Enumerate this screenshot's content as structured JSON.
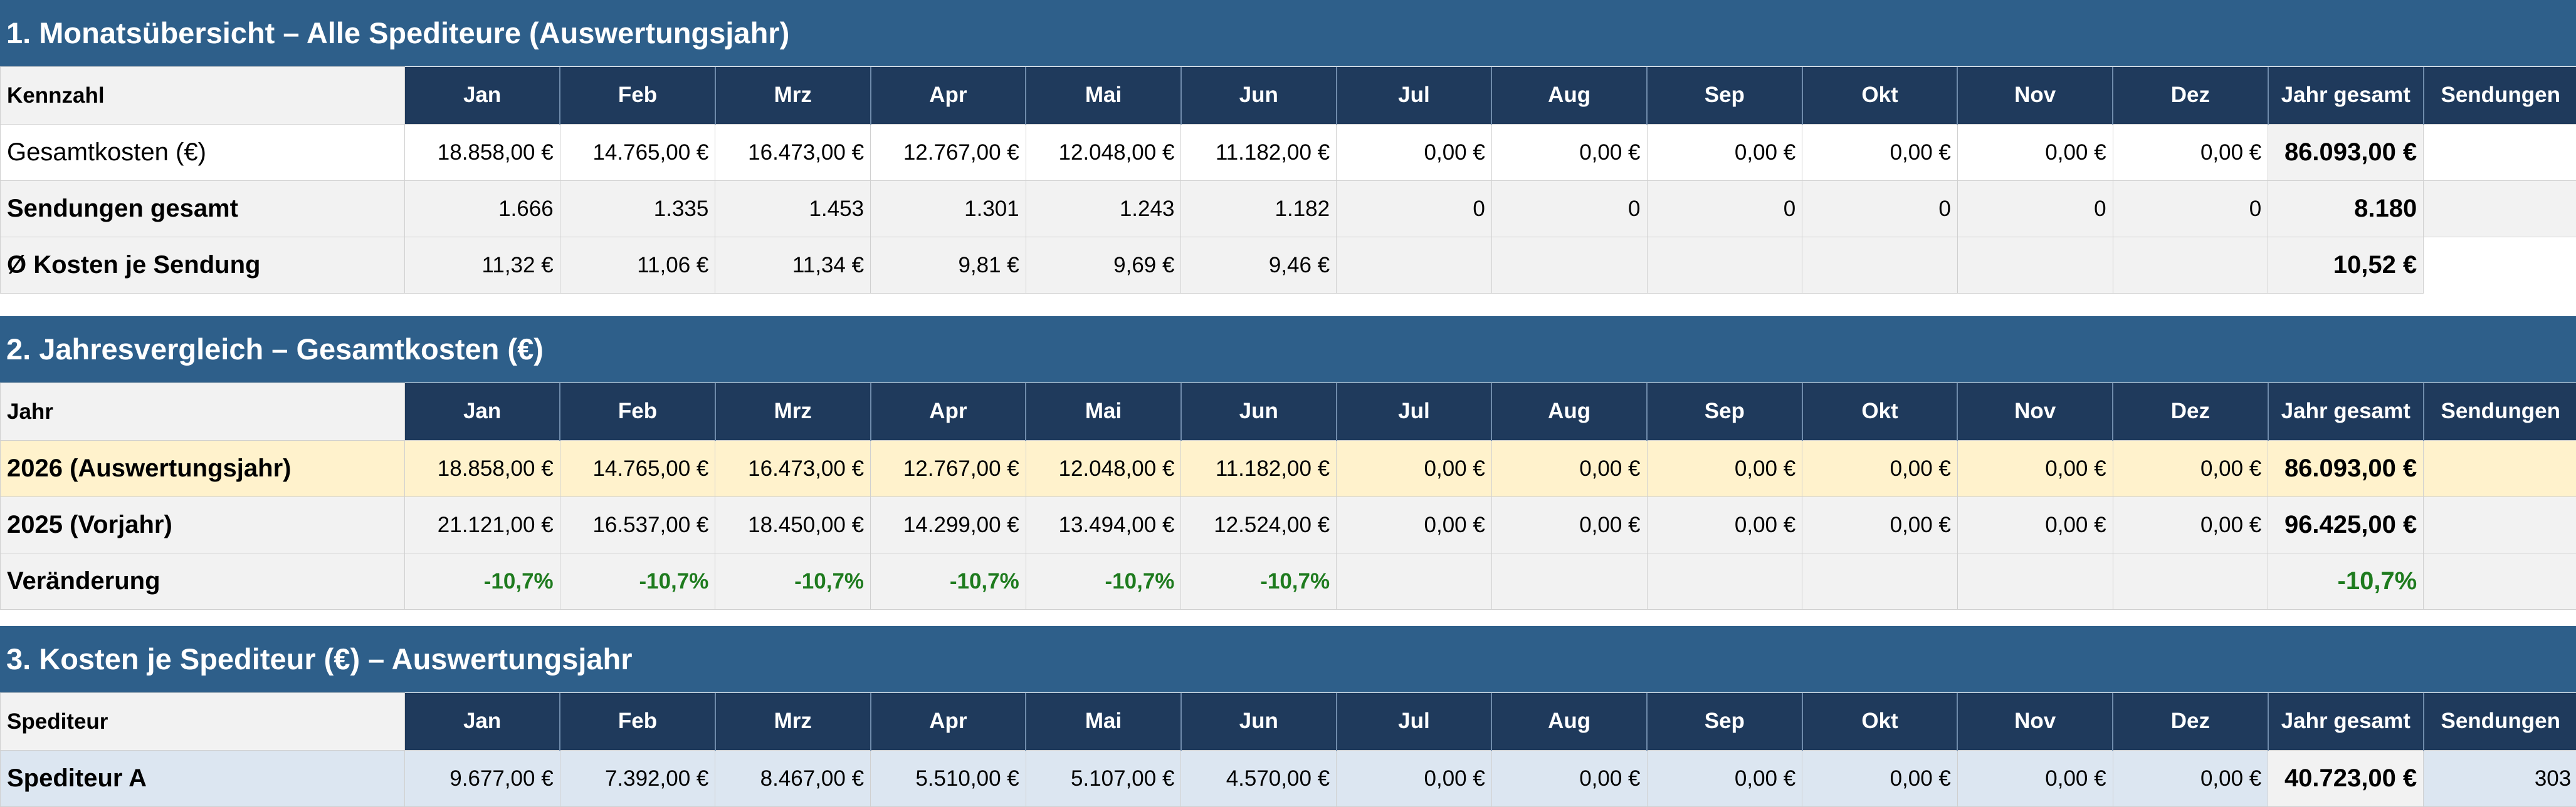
{
  "months": [
    "Jan",
    "Feb",
    "Mrz",
    "Apr",
    "Mai",
    "Jun",
    "Jul",
    "Aug",
    "Sep",
    "Okt",
    "Nov",
    "Dez"
  ],
  "col_total": "Jahr gesamt",
  "col_shipments": "Sendungen",
  "section1": {
    "title": "1. Monatsübersicht – Alle Spediteure (Auswertungsjahr)",
    "first_col": "Kennzahl",
    "rows": [
      {
        "label": "Gesamtkosten (€)",
        "values": [
          "18.858,00 €",
          "14.765,00 €",
          "16.473,00 €",
          "12.767,00 €",
          "12.048,00 €",
          "11.182,00 €",
          "0,00 €",
          "0,00 €",
          "0,00 €",
          "0,00 €",
          "0,00 €",
          "0,00 €"
        ],
        "total": "86.093,00 €",
        "shipments": ""
      },
      {
        "label": "Sendungen gesamt",
        "values": [
          "1.666",
          "1.335",
          "1.453",
          "1.301",
          "1.243",
          "1.182",
          "0",
          "0",
          "0",
          "0",
          "0",
          "0"
        ],
        "total": "8.180",
        "shipments": ""
      },
      {
        "label": "Ø Kosten je Sendung",
        "values": [
          "11,32 €",
          "11,06 €",
          "11,34 €",
          "9,81 €",
          "9,69 €",
          "9,46 €",
          "",
          "",
          "",
          "",
          "",
          ""
        ],
        "total": "10,52 €"
      }
    ]
  },
  "section2": {
    "title": "2. Jahresvergleich – Gesamtkosten (€)",
    "first_col": "Jahr",
    "rows": [
      {
        "label": "2026 (Auswertungsjahr)",
        "values": [
          "18.858,00 €",
          "14.765,00 €",
          "16.473,00 €",
          "12.767,00 €",
          "12.048,00 €",
          "11.182,00 €",
          "0,00 €",
          "0,00 €",
          "0,00 €",
          "0,00 €",
          "0,00 €",
          "0,00 €"
        ],
        "total": "86.093,00 €",
        "shipments": ""
      },
      {
        "label": "2025 (Vorjahr)",
        "values": [
          "21.121,00 €",
          "16.537,00 €",
          "18.450,00 €",
          "14.299,00 €",
          "13.494,00 €",
          "12.524,00 €",
          "0,00 €",
          "0,00 €",
          "0,00 €",
          "0,00 €",
          "0,00 €",
          "0,00 €"
        ],
        "total": "96.425,00 €",
        "shipments": ""
      },
      {
        "label": "Veränderung",
        "values": [
          "-10,7%",
          "-10,7%",
          "-10,7%",
          "-10,7%",
          "-10,7%",
          "-10,7%",
          "",
          "",
          "",
          "",
          "",
          ""
        ],
        "total": "-10,7%",
        "shipments": ""
      }
    ]
  },
  "section3": {
    "title": "3. Kosten je Spediteur (€) – Auswertungsjahr",
    "first_col": "Spediteur",
    "rows": [
      {
        "label": "Spediteur A",
        "values": [
          "9.677,00 €",
          "7.392,00 €",
          "8.467,00 €",
          "5.510,00 €",
          "5.107,00 €",
          "4.570,00 €",
          "0,00 €",
          "0,00 €",
          "0,00 €",
          "0,00 €",
          "0,00 €",
          "0,00 €"
        ],
        "total": "40.723,00 €",
        "shipments": "303"
      }
    ]
  }
}
